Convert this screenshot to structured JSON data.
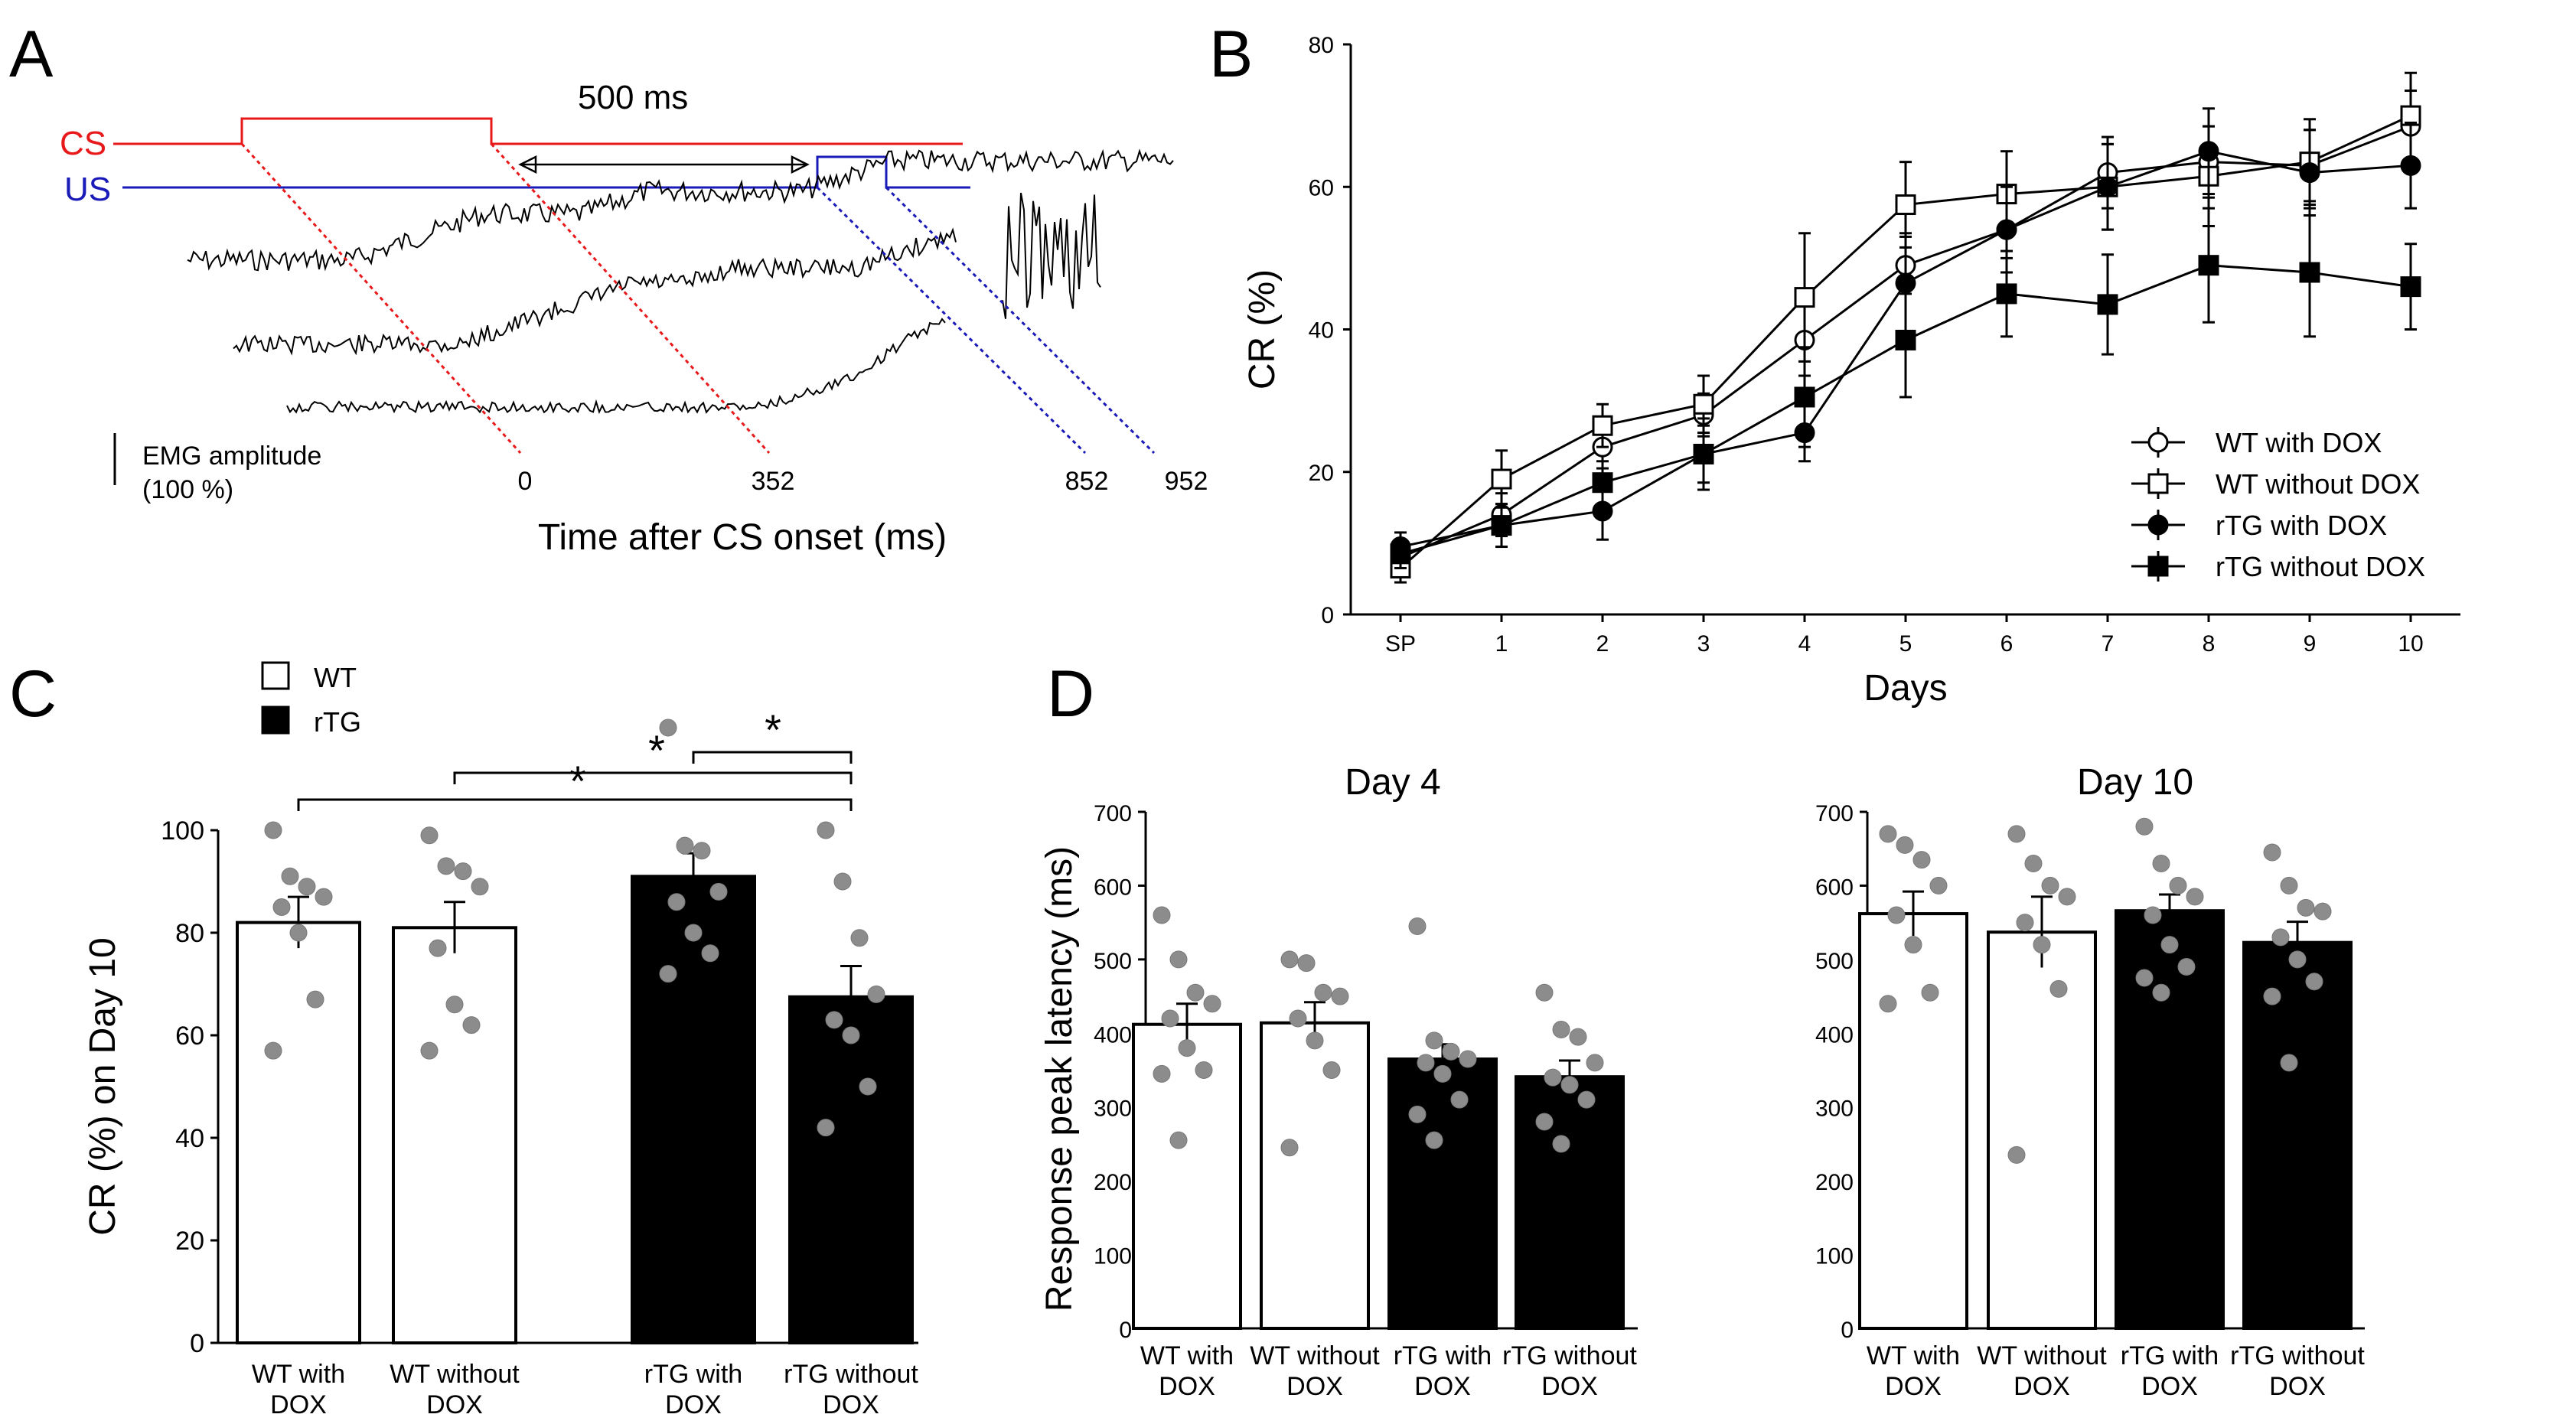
{
  "panels": {
    "a": {
      "letter": "A",
      "cs_label": "CS",
      "us_label": "US",
      "interval_label": "500 ms",
      "emg_label_line1": "EMG amplitude",
      "emg_label_line2": "(100 %)",
      "time_ticks": [
        "0",
        "352",
        "852",
        "952"
      ],
      "xlabel": "Time after CS onset (ms)",
      "colors": {
        "cs": "#e8191b",
        "us": "#1a1ab8"
      }
    },
    "b": {
      "letter": "B"
    },
    "c": {
      "letter": "C",
      "legend": [
        "WT",
        "rTG"
      ],
      "significance": [
        "*",
        "*",
        "*"
      ]
    },
    "d": {
      "letter": "D"
    }
  },
  "chart_data": [
    {
      "id": "B",
      "type": "line",
      "title": "",
      "xlabel": "Days",
      "ylabel": "CR (%)",
      "categories": [
        "SP",
        "1",
        "2",
        "3",
        "4",
        "5",
        "6",
        "7",
        "8",
        "9",
        "10"
      ],
      "ylim": [
        0,
        80
      ],
      "yticks": [
        0,
        20,
        40,
        60,
        80
      ],
      "legend_position": "lower-right",
      "series": [
        {
          "name": "WT with DOX",
          "marker": "circle-open",
          "values": [
            8,
            14,
            23.5,
            28,
            38.5,
            49,
            54,
            62,
            63.5,
            63,
            68.5
          ],
          "errors": [
            2,
            3,
            3,
            3,
            5,
            4,
            4,
            5,
            5,
            5,
            5
          ]
        },
        {
          "name": "WT without DOX",
          "marker": "square-open",
          "values": [
            6.5,
            19,
            26.5,
            29.5,
            44.5,
            57.5,
            59,
            60,
            61.5,
            63.5,
            70
          ],
          "errors": [
            2,
            4,
            3,
            4,
            9,
            6,
            6,
            6,
            7,
            6,
            6
          ]
        },
        {
          "name": "rTG with DOX",
          "marker": "circle-filled",
          "values": [
            9.5,
            12.5,
            14.5,
            22.5,
            25.5,
            46.5,
            54,
            60,
            65,
            62,
            63
          ],
          "errors": [
            2,
            3,
            4,
            4,
            4,
            7,
            6,
            6,
            6,
            6,
            6
          ]
        },
        {
          "name": "rTG without DOX",
          "marker": "square-filled",
          "values": [
            8.5,
            12.5,
            18.5,
            22.5,
            30.5,
            38.5,
            45,
            43.5,
            49,
            48,
            46
          ],
          "errors": [
            2,
            3,
            3,
            5,
            7,
            8,
            6,
            7,
            8,
            9,
            6
          ]
        }
      ]
    },
    {
      "id": "C",
      "type": "bar",
      "title": "",
      "ylabel": "CR (%) on Day 10",
      "categories": [
        "WT with DOX",
        "WT without DOX",
        "rTG with DOX",
        "rTG without DOX"
      ],
      "values": [
        82,
        81,
        91,
        67.5
      ],
      "errors": [
        5,
        5,
        4.5,
        6
      ],
      "fills": [
        "white",
        "white",
        "black",
        "black"
      ],
      "ylim": [
        0,
        100
      ],
      "yticks": [
        0,
        20,
        40,
        60,
        80,
        100
      ],
      "points": [
        [
          100,
          91,
          89,
          87,
          85,
          80,
          67,
          57
        ],
        [
          99,
          93,
          92,
          89,
          77,
          66,
          62,
          57
        ],
        [
          120,
          97,
          96,
          88,
          86,
          80,
          76,
          72
        ],
        [
          100,
          90,
          79,
          68,
          63,
          60,
          50,
          42
        ]
      ],
      "comparisons": [
        {
          "pair": [
            "WT with DOX",
            "rTG without DOX"
          ],
          "label": "*"
        },
        {
          "pair": [
            "WT without DOX",
            "rTG without DOX"
          ],
          "label": "*"
        },
        {
          "pair": [
            "rTG with DOX",
            "rTG without DOX"
          ],
          "label": "*"
        }
      ]
    },
    {
      "id": "D-Day4",
      "type": "bar",
      "title": "Day 4",
      "ylabel": "Response peak latency (ms)",
      "categories": [
        "WT with DOX",
        "WT without DOX",
        "rTG with DOX",
        "rTG without DOX"
      ],
      "values": [
        412,
        414,
        365,
        341
      ],
      "errors": [
        28,
        28,
        20,
        22
      ],
      "fills": [
        "white",
        "white",
        "black",
        "black"
      ],
      "ylim": [
        0,
        700
      ],
      "yticks": [
        0,
        100,
        200,
        300,
        400,
        500,
        600,
        700
      ],
      "points": [
        [
          560,
          500,
          455,
          440,
          420,
          380,
          350,
          345,
          255
        ],
        [
          500,
          495,
          455,
          450,
          420,
          390,
          350,
          245
        ],
        [
          545,
          390,
          375,
          365,
          360,
          345,
          310,
          290,
          255
        ],
        [
          455,
          405,
          395,
          360,
          340,
          330,
          310,
          280,
          250
        ]
      ]
    },
    {
      "id": "D-Day10",
      "type": "bar",
      "title": "Day 10",
      "ylabel": "",
      "categories": [
        "WT with DOX",
        "WT without DOX",
        "rTG with DOX",
        "rTG without DOX"
      ],
      "values": [
        562,
        537,
        566,
        523
      ],
      "errors": [
        30,
        48,
        22,
        28
      ],
      "fills": [
        "white",
        "white",
        "black",
        "black"
      ],
      "ylim": [
        0,
        700
      ],
      "yticks": [
        0,
        100,
        200,
        300,
        400,
        500,
        600,
        700
      ],
      "points": [
        [
          670,
          655,
          635,
          600,
          560,
          520,
          455,
          440
        ],
        [
          670,
          630,
          600,
          585,
          550,
          520,
          460,
          235
        ],
        [
          680,
          630,
          600,
          585,
          560,
          520,
          490,
          475,
          455
        ],
        [
          645,
          600,
          570,
          565,
          530,
          500,
          470,
          450,
          360
        ]
      ]
    }
  ]
}
